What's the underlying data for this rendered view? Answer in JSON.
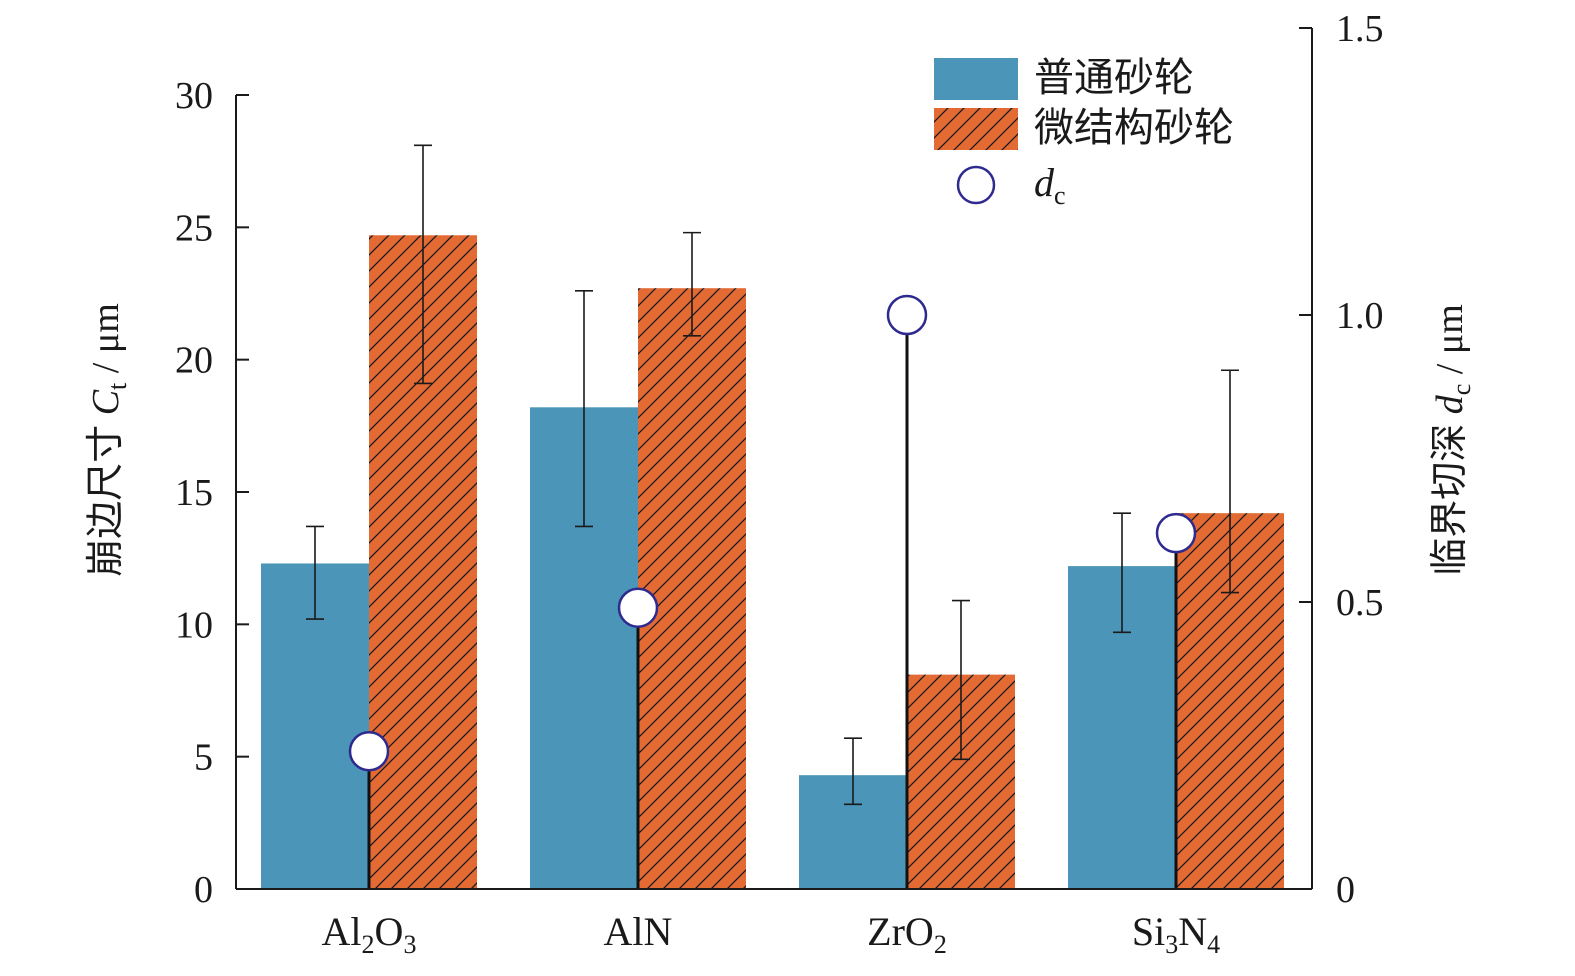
{
  "chart_data": {
    "type": "bar",
    "categories": [
      {
        "base": "Al",
        "sub1": "2",
        "mid": "O",
        "sub2": "3"
      },
      {
        "base": "AlN",
        "sub1": "",
        "mid": "",
        "sub2": ""
      },
      {
        "base": "ZrO",
        "sub1": "2",
        "mid": "",
        "sub2": ""
      },
      {
        "base": "Si",
        "sub1": "3",
        "mid": "N",
        "sub2": "4"
      }
    ],
    "series": [
      {
        "name": "普通砂轮",
        "color": "#4a95b8",
        "pattern": "solid",
        "values": [
          12.3,
          18.2,
          4.3,
          12.2
        ],
        "err_low": [
          10.2,
          13.7,
          3.2,
          9.7
        ],
        "err_high": [
          13.7,
          22.6,
          5.7,
          14.2
        ]
      },
      {
        "name": "微结构砂轮",
        "color": "#e46a33",
        "pattern": "diagonal-hatch",
        "values": [
          24.7,
          22.7,
          8.1,
          14.2
        ],
        "err_low": [
          19.1,
          20.9,
          4.9,
          11.2
        ],
        "err_high": [
          28.1,
          24.8,
          10.9,
          19.6
        ]
      }
    ],
    "dc": {
      "name": "d",
      "name_sub": "c",
      "marker_color": "#2e2a8f",
      "values": [
        0.24,
        0.49,
        1.0,
        0.62
      ]
    },
    "left_axis": {
      "label_prefix": "崩边尺寸 ",
      "label_var": "C",
      "label_sub": "t",
      "label_suffix": " / μm",
      "ylim": [
        0,
        30
      ],
      "ticks": [
        0,
        5,
        10,
        15,
        20,
        25,
        30
      ]
    },
    "right_axis": {
      "label_prefix": "临界切深 ",
      "label_var": "d",
      "label_sub": "c",
      "label_suffix": " / μm",
      "ylim": [
        0,
        1.5
      ],
      "ticks": [
        "0",
        "0.5",
        "1.0",
        "1.5"
      ]
    },
    "legend_position": "top-right",
    "grid": false
  }
}
